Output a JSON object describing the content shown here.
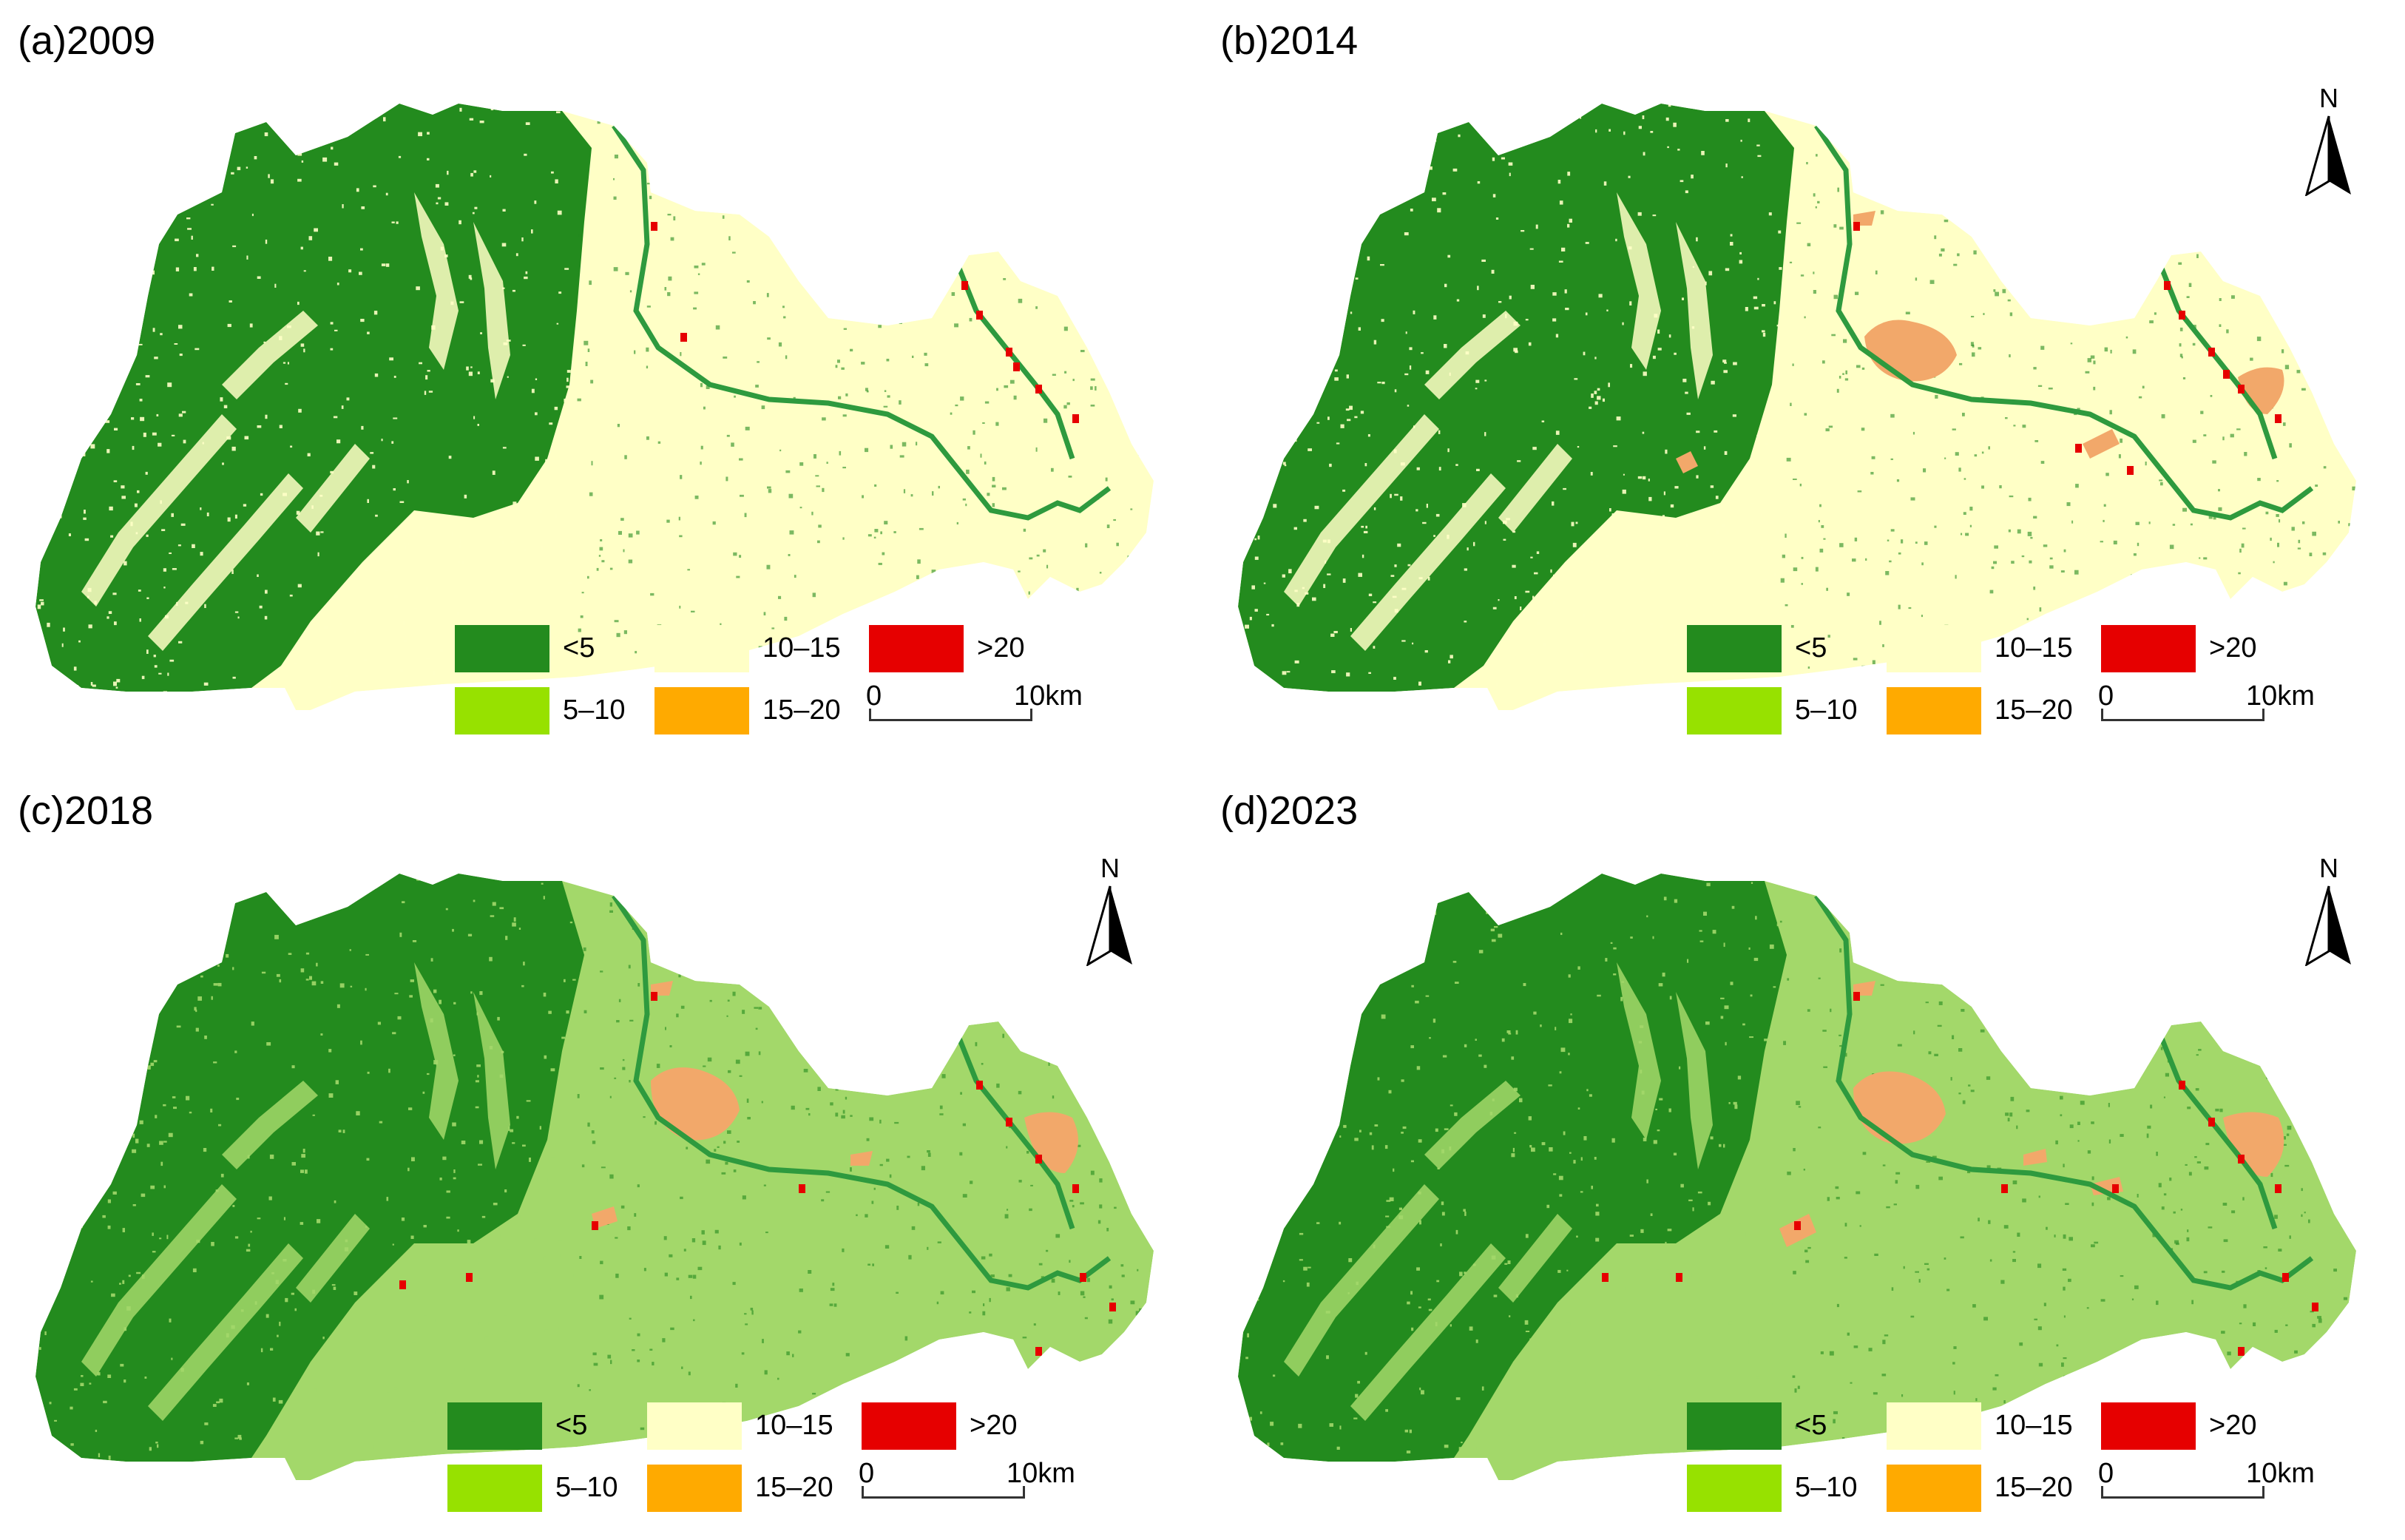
{
  "panels": [
    {
      "title": "(a)2009",
      "base": "#ffffc6",
      "show_north": false
    },
    {
      "title": "(b)2014",
      "base": "#ffffc6",
      "show_north": true
    },
    {
      "title": "(c)2018",
      "base": "#a3d86a",
      "show_north": true
    },
    {
      "title": "(d)2023",
      "base": "#a3d86a",
      "show_north": true
    }
  ],
  "legend": {
    "items": [
      {
        "label": "<5",
        "color": "#238b1e"
      },
      {
        "label": "10–15",
        "color": "#ffffc6"
      },
      {
        "label": ">20",
        "color": "#e60000"
      },
      {
        "label": "5–10",
        "color": "#97e100"
      },
      {
        "label": "15–20",
        "color": "#ffaa00"
      }
    ]
  },
  "scalebar": {
    "start": "0",
    "end": "10km"
  },
  "north_label": "N",
  "colors": {
    "forest": "#238b1e",
    "river": "#2e9a3e",
    "urban_orange": "#f2a86a",
    "urban_red": "#e60000"
  }
}
